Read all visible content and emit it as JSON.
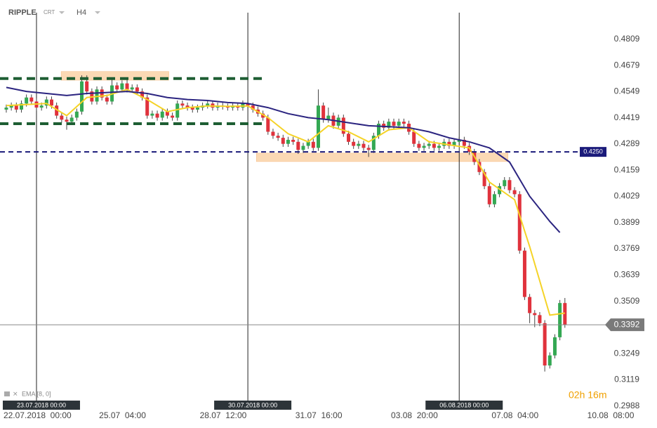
{
  "chart_data": {
    "type": "candlestick",
    "symbol": "RIPPLE",
    "source": "CRT",
    "timeframe": "H4",
    "indicator": "EMA [8, 0]",
    "countdown": "02h 16m",
    "up_color": "#34a853",
    "down_color": "#e0323c",
    "xlim": [
      -1.25,
      118.7
    ],
    "ylim": [
      0.2946,
      0.4969
    ],
    "xticks": [
      {
        "value": 0,
        "label": "22.07.2018  00:00"
      },
      {
        "value": 19,
        "label": "25.07  04:00"
      },
      {
        "value": 39,
        "label": "28.07  12:00"
      },
      {
        "value": 58,
        "label": "31.07  16:00"
      },
      {
        "value": 77,
        "label": "03.08  20:00"
      },
      {
        "value": 97,
        "label": "07.08  04:00"
      },
      {
        "value": 116,
        "label": "10.08  08:00"
      }
    ],
    "yticks": [
      0.4809,
      0.4679,
      0.4549,
      0.4419,
      0.4289,
      0.4159,
      0.4029,
      0.3899,
      0.3769,
      0.3639,
      0.3509,
      0.3249,
      0.3119,
      0.2988
    ],
    "vlines": [
      {
        "value": 6,
        "label": "23.07.2018 00:00"
      },
      {
        "value": 48,
        "label": "30.07.2018 00:00"
      },
      {
        "value": 90,
        "label": "06.08.2018 00:00"
      }
    ],
    "levels": [
      {
        "value": 0.4614,
        "color": "#1e5e33",
        "end": 51.5
      },
      {
        "value": 0.439,
        "color": "#1e5e33",
        "end": 51.5
      },
      {
        "value": {
          "value": 0.425,
          "label": "0.4250"
        },
        "color": "#1a1a7a"
      }
    ],
    "zones": [
      {
        "x": [
          10.9,
          32.3
        ],
        "y": [
          0.4606,
          0.4649
        ]
      },
      {
        "x": [
          49.7,
          99.7
        ],
        "y": [
          0.4202,
          0.4244
        ]
      }
    ],
    "last_price": 0.3392,
    "open": [
      0.446,
      0.447,
      0.448,
      0.446,
      0.449,
      0.452,
      0.45,
      0.447,
      0.448,
      0.451,
      0.448,
      0.443,
      0.441,
      0.44,
      0.442,
      0.445,
      0.46,
      0.455,
      0.45,
      0.456,
      0.452,
      0.45,
      0.458,
      0.456,
      0.459,
      0.456,
      0.457,
      0.455,
      0.452,
      0.443,
      0.444,
      0.442,
      0.445,
      0.443,
      0.442,
      0.449,
      0.448,
      0.447,
      0.446,
      0.447,
      0.448,
      0.449,
      0.447,
      0.448,
      0.4475,
      0.447,
      0.448,
      0.447,
      0.449,
      0.448,
      0.446,
      0.444,
      0.442,
      0.435,
      0.433,
      0.432,
      0.429,
      0.431,
      0.43,
      0.426,
      0.428,
      0.43,
      0.427,
      0.448,
      0.441,
      0.443,
      0.438,
      0.442,
      0.434,
      0.43,
      0.428,
      0.429,
      0.427,
      0.426,
      0.433,
      0.439,
      0.437,
      0.44,
      0.438,
      0.44,
      0.439,
      0.435,
      0.429,
      0.427,
      0.428,
      0.429,
      0.427,
      0.428,
      0.43,
      0.428,
      0.43,
      0.431,
      0.428,
      0.425,
      0.42,
      0.415,
      0.408,
      0.399,
      0.404,
      0.408,
      0.411,
      0.406,
      0.404,
      0.376,
      0.353,
      0.345,
      0.344,
      0.34,
      0.319,
      0.324,
      0.333,
      0.35
    ],
    "high": [
      0.4485,
      0.4495,
      0.4495,
      0.4505,
      0.4535,
      0.4535,
      0.4515,
      0.4495,
      0.4525,
      0.4525,
      0.4495,
      0.4445,
      0.4425,
      0.4435,
      0.4465,
      0.463,
      0.463,
      0.4565,
      0.4575,
      0.4575,
      0.4535,
      0.461,
      0.4595,
      0.4605,
      0.462,
      0.4585,
      0.4585,
      0.4565,
      0.4535,
      0.4455,
      0.4455,
      0.4465,
      0.4465,
      0.4445,
      0.4505,
      0.4505,
      0.4495,
      0.4485,
      0.4485,
      0.4495,
      0.4505,
      0.4505,
      0.4495,
      0.4495,
      0.449,
      0.4495,
      0.4495,
      0.4505,
      0.4505,
      0.4495,
      0.4475,
      0.4455,
      0.4435,
      0.4365,
      0.4345,
      0.4335,
      0.4325,
      0.4325,
      0.4315,
      0.4295,
      0.4315,
      0.4315,
      0.456,
      0.4495,
      0.447,
      0.4445,
      0.4435,
      0.4435,
      0.4355,
      0.4315,
      0.4305,
      0.4305,
      0.4285,
      0.4345,
      0.4405,
      0.4405,
      0.4415,
      0.4415,
      0.4415,
      0.4415,
      0.4405,
      0.4365,
      0.4305,
      0.4295,
      0.4305,
      0.4305,
      0.4295,
      0.4315,
      0.4315,
      0.4315,
      0.4325,
      0.4325,
      0.4295,
      0.4265,
      0.4215,
      0.4165,
      0.4095,
      0.4055,
      0.4095,
      0.4125,
      0.4125,
      0.4075,
      0.4055,
      0.3775,
      0.3545,
      0.3465,
      0.3455,
      0.3415,
      0.3255,
      0.3345,
      0.3515,
      0.3525
    ],
    "low": [
      0.4445,
      0.4455,
      0.4445,
      0.4445,
      0.4475,
      0.4485,
      0.4455,
      0.4455,
      0.4465,
      0.4465,
      0.4415,
      0.4395,
      0.436,
      0.4385,
      0.4405,
      0.4435,
      0.4535,
      0.4485,
      0.4485,
      0.4505,
      0.4485,
      0.4485,
      0.4545,
      0.4545,
      0.4545,
      0.4545,
      0.4535,
      0.4505,
      0.4415,
      0.4415,
      0.4405,
      0.4405,
      0.4415,
      0.4405,
      0.4405,
      0.4465,
      0.4455,
      0.4445,
      0.4445,
      0.4455,
      0.4465,
      0.4455,
      0.4455,
      0.446,
      0.4455,
      0.4455,
      0.4455,
      0.4455,
      0.4465,
      0.4445,
      0.4425,
      0.4405,
      0.4335,
      0.4315,
      0.4305,
      0.4275,
      0.4275,
      0.4285,
      0.424,
      0.4245,
      0.4265,
      0.4255,
      0.4255,
      0.4395,
      0.4395,
      0.4365,
      0.4365,
      0.4325,
      0.4285,
      0.4265,
      0.4265,
      0.4255,
      0.4225,
      0.4245,
      0.4315,
      0.4355,
      0.4355,
      0.4365,
      0.4365,
      0.4375,
      0.4335,
      0.4275,
      0.4255,
      0.4255,
      0.4265,
      0.4255,
      0.4255,
      0.4265,
      0.4265,
      0.4265,
      0.4285,
      0.4265,
      0.4235,
      0.4185,
      0.4135,
      0.4065,
      0.3975,
      0.3975,
      0.4025,
      0.4065,
      0.4045,
      0.4025,
      0.3745,
      0.3515,
      0.34,
      0.338,
      0.3385,
      0.316,
      0.3175,
      0.3225,
      0.3315,
      0.3377
    ],
    "close": [
      0.447,
      0.448,
      0.446,
      0.449,
      0.452,
      0.45,
      0.447,
      0.448,
      0.451,
      0.448,
      0.443,
      0.441,
      0.44,
      0.442,
      0.445,
      0.46,
      0.455,
      0.45,
      0.456,
      0.452,
      0.45,
      0.458,
      0.456,
      0.459,
      0.456,
      0.457,
      0.455,
      0.452,
      0.443,
      0.444,
      0.442,
      0.445,
      0.443,
      0.442,
      0.449,
      0.448,
      0.447,
      0.446,
      0.447,
      0.448,
      0.449,
      0.447,
      0.448,
      0.4475,
      0.447,
      0.448,
      0.447,
      0.449,
      0.448,
      0.446,
      0.444,
      0.442,
      0.435,
      0.433,
      0.432,
      0.429,
      0.431,
      0.43,
      0.426,
      0.428,
      0.43,
      0.427,
      0.448,
      0.441,
      0.443,
      0.438,
      0.442,
      0.434,
      0.43,
      0.428,
      0.429,
      0.427,
      0.426,
      0.433,
      0.439,
      0.437,
      0.44,
      0.438,
      0.44,
      0.439,
      0.435,
      0.429,
      0.427,
      0.428,
      0.429,
      0.427,
      0.428,
      0.43,
      0.428,
      0.43,
      0.431,
      0.428,
      0.425,
      0.42,
      0.415,
      0.408,
      0.399,
      0.404,
      0.408,
      0.411,
      0.406,
      0.404,
      0.376,
      0.353,
      0.345,
      0.344,
      0.34,
      0.319,
      0.324,
      0.333,
      0.35,
      0.3392
    ],
    "lines": [
      {
        "color": "#f5d327",
        "x": [
          0,
          4,
          8,
          12,
          16,
          20,
          24,
          28,
          32,
          36,
          40,
          44,
          48,
          52,
          56,
          60,
          64,
          68,
          72,
          76,
          80,
          84,
          88,
          92,
          96,
          101,
          104,
          108,
          111
        ],
        "values": [
          0.448,
          0.4485,
          0.449,
          0.443,
          0.452,
          0.453,
          0.456,
          0.451,
          0.445,
          0.447,
          0.4478,
          0.4476,
          0.4478,
          0.442,
          0.434,
          0.43,
          0.438,
          0.435,
          0.43,
          0.436,
          0.437,
          0.43,
          0.4285,
          0.427,
          0.41,
          0.4013,
          0.378,
          0.344,
          0.345
        ]
      },
      {
        "color": "#2b2480",
        "x": [
          0,
          4,
          8,
          12,
          16,
          20,
          24,
          28,
          32,
          36,
          40,
          44,
          48,
          52,
          56,
          60,
          64,
          68,
          72,
          76,
          80,
          84,
          88,
          92,
          96,
          100,
          104,
          108,
          110
        ],
        "values": [
          0.457,
          0.455,
          0.454,
          0.453,
          0.454,
          0.4545,
          0.455,
          0.454,
          0.452,
          0.451,
          0.4505,
          0.4495,
          0.449,
          0.447,
          0.444,
          0.442,
          0.441,
          0.4395,
          0.438,
          0.4375,
          0.437,
          0.435,
          0.432,
          0.43,
          0.427,
          0.42,
          0.403,
          0.3905,
          0.385
        ]
      }
    ]
  }
}
